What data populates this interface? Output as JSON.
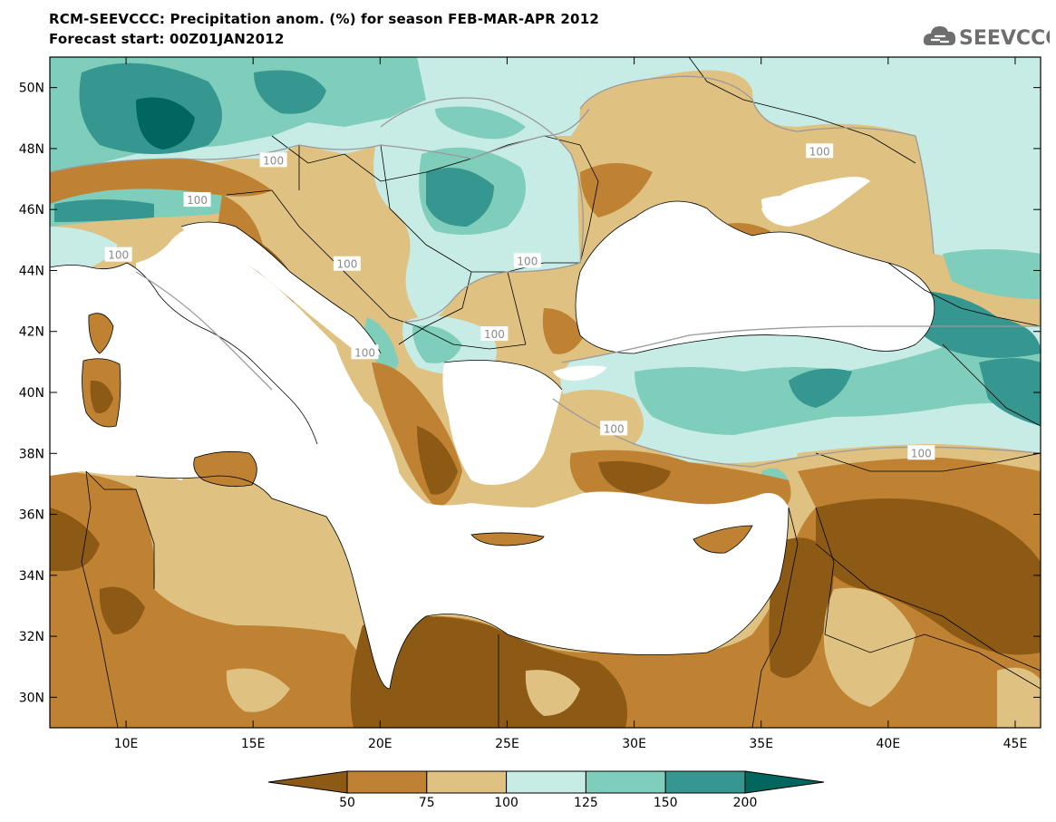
{
  "header": {
    "title_line1": "RCM-SEEVCCC: Precipitation anom. (%) for season FEB-MAR-APR 2012",
    "title_line2": "Forecast start: 00Z01JAN2012"
  },
  "logo": {
    "text": "SEEVCCC",
    "icon": "cloud-logo-icon",
    "color": "#6e6e6e"
  },
  "map": {
    "lon_range": [
      7,
      46
    ],
    "lat_range": [
      29,
      51
    ],
    "lon_ticks": [
      10,
      15,
      20,
      25,
      30,
      35,
      40,
      45
    ],
    "lon_tick_labels": [
      "10E",
      "15E",
      "20E",
      "25E",
      "30E",
      "35E",
      "40E",
      "45E"
    ],
    "lat_ticks": [
      30,
      32,
      34,
      36,
      38,
      40,
      42,
      44,
      46,
      48,
      50
    ],
    "lat_tick_labels": [
      "30N",
      "32N",
      "34N",
      "36N",
      "38N",
      "40N",
      "42N",
      "44N",
      "46N",
      "48N",
      "50N"
    ],
    "sea_color": "#ffffff",
    "contour_label": "100",
    "contour_label_positions": [
      {
        "lon": 15.8,
        "lat": 47.6
      },
      {
        "lon": 12.8,
        "lat": 46.3
      },
      {
        "lon": 9.7,
        "lat": 44.5
      },
      {
        "lon": 25.8,
        "lat": 44.3
      },
      {
        "lon": 18.7,
        "lat": 44.2
      },
      {
        "lon": 24.5,
        "lat": 41.9
      },
      {
        "lon": 19.4,
        "lat": 41.3
      },
      {
        "lon": 29.2,
        "lat": 38.8
      },
      {
        "lon": 37.3,
        "lat": 47.9
      },
      {
        "lon": 41.3,
        "lat": 38.0
      }
    ]
  },
  "colorbar": {
    "levels": [
      "50",
      "75",
      "100",
      "125",
      "150",
      "200"
    ],
    "colors": [
      "#8c5a14",
      "#bf8232",
      "#dfc181",
      "#c7ebe5",
      "#7fcdbb",
      "#35978f",
      "#01665e"
    ]
  }
}
